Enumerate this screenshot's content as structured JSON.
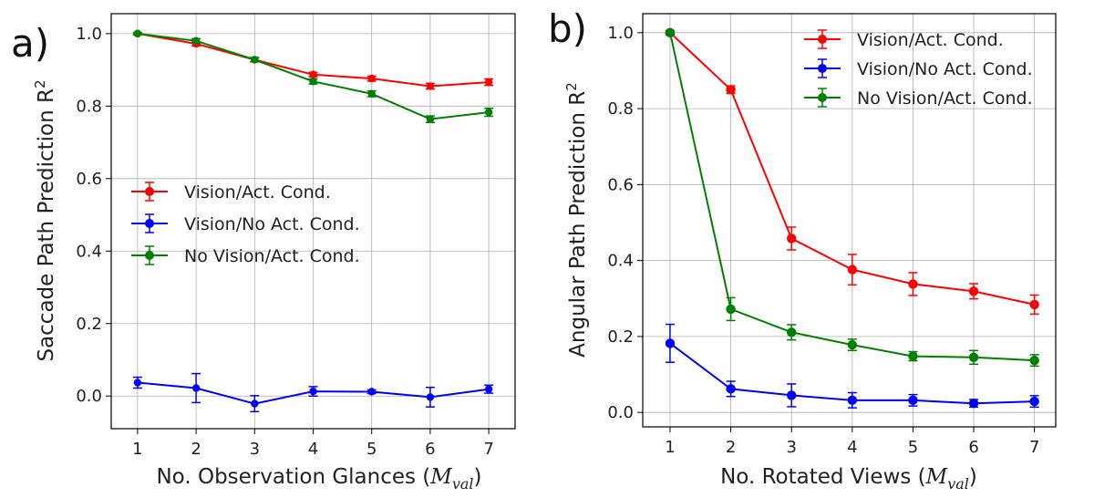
{
  "chart_data": [
    {
      "type": "line",
      "panel_label": "a)",
      "xlabel": "No. Observation Glances (",
      "xlabel_math": "M",
      "xlabel_sub": "val",
      "xlabel_close": ")",
      "ylabel": "Saccade  Path Prediction R",
      "ylabel_sup": "2",
      "x": [
        1,
        2,
        3,
        4,
        5,
        6,
        7
      ],
      "xticks": [
        "1",
        "2",
        "3",
        "4",
        "5",
        "6",
        "7"
      ],
      "yticks": [
        "0.0",
        "0.2",
        "0.4",
        "0.6",
        "0.8",
        "1.0"
      ],
      "xlim": [
        0.55,
        7.45
      ],
      "ylim": [
        -0.09,
        1.055
      ],
      "grid": true,
      "legend_placement": "center-left",
      "series": [
        {
          "name": "Vision/Act. Cond.",
          "color": "#ff0000",
          "values": [
            1.0,
            0.972,
            0.928,
            0.887,
            0.876,
            0.855,
            0.866
          ],
          "errors": [
            0.003,
            0.006,
            0.006,
            0.006,
            0.007,
            0.008,
            0.009
          ]
        },
        {
          "name": "Vision/No Act. Cond.",
          "color": "#0000ff",
          "values": [
            0.037,
            0.022,
            -0.021,
            0.013,
            0.012,
            -0.003,
            0.019
          ],
          "errors": [
            0.015,
            0.04,
            0.022,
            0.013,
            0.005,
            0.027,
            0.011
          ]
        },
        {
          "name": "No Vision/Act. Cond.",
          "color": "#008000",
          "values": [
            1.0,
            0.98,
            0.928,
            0.868,
            0.834,
            0.764,
            0.783
          ],
          "errors": [
            0.003,
            0.006,
            0.006,
            0.007,
            0.008,
            0.009,
            0.011
          ]
        }
      ]
    },
    {
      "type": "line",
      "panel_label": "b)",
      "xlabel": "No. Rotated Views (",
      "xlabel_math": "M",
      "xlabel_sub": "val",
      "xlabel_close": ")",
      "ylabel": "Angular  Path Prediction R",
      "ylabel_sup": "2",
      "x": [
        1,
        2,
        3,
        4,
        5,
        6,
        7
      ],
      "xticks": [
        "1",
        "2",
        "3",
        "4",
        "5",
        "6",
        "7"
      ],
      "yticks": [
        "0.0",
        "0.2",
        "0.4",
        "0.6",
        "0.8",
        "1.0"
      ],
      "xlim": [
        0.55,
        7.35
      ],
      "ylim": [
        -0.038,
        1.05
      ],
      "grid": true,
      "legend_placement": "top-right",
      "series": [
        {
          "name": "Vision/Act. Cond.",
          "color": "#ff0000",
          "values": [
            1.0,
            0.85,
            0.458,
            0.376,
            0.338,
            0.319,
            0.284
          ],
          "errors": [
            0.005,
            0.01,
            0.03,
            0.04,
            0.03,
            0.02,
            0.025
          ]
        },
        {
          "name": "Vision/No Act. Cond.",
          "color": "#0000ff",
          "values": [
            0.182,
            0.062,
            0.045,
            0.032,
            0.032,
            0.024,
            0.029
          ],
          "errors": [
            0.05,
            0.02,
            0.03,
            0.02,
            0.015,
            0.01,
            0.015
          ]
        },
        {
          "name": "No Vision/Act. Cond.",
          "color": "#008000",
          "values": [
            1.0,
            0.272,
            0.211,
            0.178,
            0.148,
            0.145,
            0.137
          ],
          "errors": [
            0.005,
            0.03,
            0.02,
            0.015,
            0.012,
            0.018,
            0.015
          ]
        }
      ]
    }
  ]
}
